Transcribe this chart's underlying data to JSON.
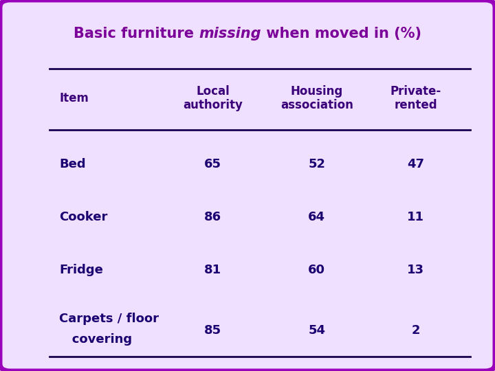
{
  "title_normal": "Basic furniture ",
  "title_italic": "missing",
  "title_normal2": " when moved in (%)",
  "title_color": "#7B0099",
  "title_fontsize": 15,
  "col_headers": [
    "Local\nauthority",
    "Housing\nassociation",
    "Private-\nrented"
  ],
  "data": [
    [
      65,
      52,
      47
    ],
    [
      86,
      64,
      11
    ],
    [
      81,
      60,
      13
    ],
    [
      85,
      54,
      2
    ]
  ],
  "header_color": "#3A007A",
  "data_color": "#1A0070",
  "background_color": "#F0E0FF",
  "border_color": "#9900BB",
  "line_color": "#1A0050",
  "fontsize": 13,
  "header_fontsize": 12
}
